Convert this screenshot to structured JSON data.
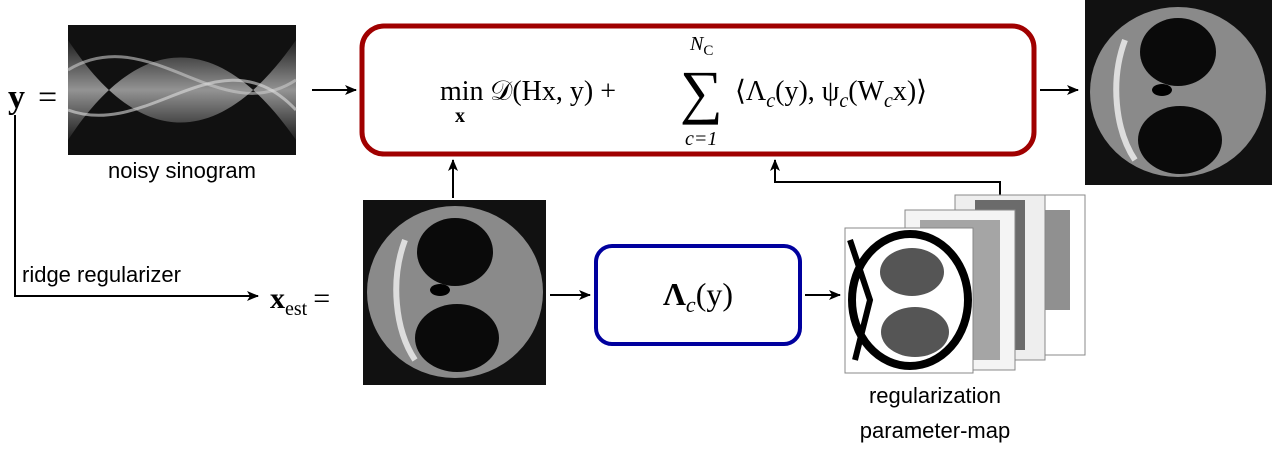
{
  "input": {
    "symbol": "y",
    "equals": "="
  },
  "sinogram_caption": "noisy sinogram",
  "objective": {
    "operator": "min",
    "operator_sub": "x",
    "term": "𝒟(Hx, y) +",
    "sum": "∑",
    "sum_upper": "N",
    "sum_upper_sub": "C",
    "sum_lower": "c=1",
    "pairing": [
      "⟨Λ",
      "c",
      "(y), ψ",
      "c",
      "(W",
      "c",
      "x)⟩"
    ]
  },
  "ridge_label": "ridge regularizer",
  "estimate": {
    "symbol": "x",
    "sub": "est",
    "equals": "="
  },
  "lambda_box": [
    "Λ",
    "c",
    "(y)"
  ],
  "map_caption": [
    "regularization",
    "parameter-map"
  ]
}
